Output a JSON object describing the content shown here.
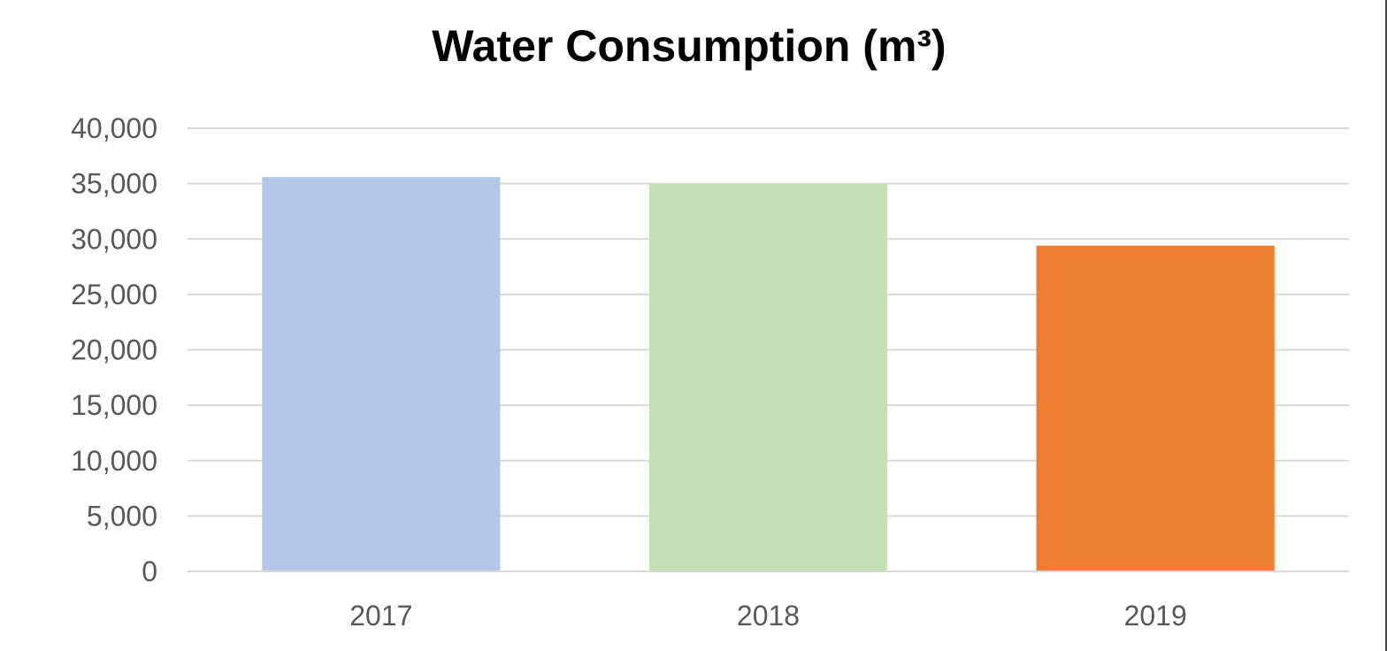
{
  "chart_data": {
    "type": "bar",
    "title": "Water Consumption (m³)",
    "xlabel": "",
    "ylabel": "",
    "categories": [
      "2017",
      "2018",
      "2019"
    ],
    "values": [
      35600,
      35000,
      29400
    ],
    "colors": [
      "#b4c7e7",
      "#c5e0b4",
      "#ed7d31"
    ],
    "ylim": [
      0,
      40000
    ],
    "yticks": [
      0,
      5000,
      10000,
      15000,
      20000,
      25000,
      30000,
      35000,
      40000
    ],
    "ytick_labels": [
      "0",
      "5,000",
      "10,000",
      "15,000",
      "20,000",
      "25,000",
      "30,000",
      "35,000",
      "40,000"
    ],
    "grid": true,
    "legend": "none"
  }
}
